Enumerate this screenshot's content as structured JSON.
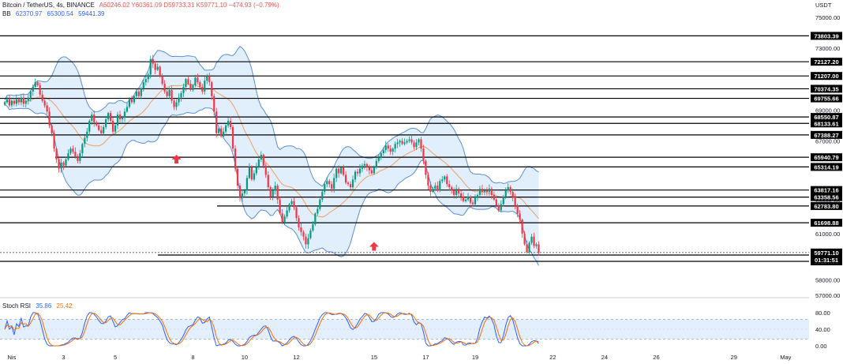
{
  "header": {
    "symbol": "Bitcoin / TetherUS, 4s, BINANCE",
    "ohlc": "A60246.02  Y60361.09  D59733.31  K59771.10  −474.93 (−0.79%)",
    "bb_label": "BB",
    "bb_values": [
      "62370.97",
      "65300.54",
      "59441.39"
    ],
    "currency": "USDT"
  },
  "rsi_panel": {
    "label": "Stoch RSI",
    "k": "35.86",
    "d": "25.42"
  },
  "colors": {
    "up": "#089981",
    "down": "#f23645",
    "band": "#5b8fd6",
    "band_fill": "#d7e8fb",
    "basis": "#f0a068",
    "rsi_k": "#2962ff",
    "rsi_d": "#ff6d00",
    "arrow": "#f23645"
  },
  "chart_data": {
    "type": "candlestick",
    "y_range": [
      57000,
      75000
    ],
    "y_ticks": [
      {
        "label": "75000.00",
        "v": 75000
      },
      {
        "label": "73000.00",
        "v": 73000
      },
      {
        "label": "69000.00",
        "v": 69000
      },
      {
        "label": "67000.00",
        "v": 67000
      },
      {
        "label": "63000.00",
        "v": 63000
      },
      {
        "label": "61000.00",
        "v": 61000
      },
      {
        "label": "58000.00",
        "v": 58000
      },
      {
        "label": "57000.00",
        "v": 57000
      }
    ],
    "x_labels": [
      {
        "label": "Nis",
        "i": 3
      },
      {
        "label": "3",
        "i": 25
      },
      {
        "label": "5",
        "i": 47
      },
      {
        "label": "8",
        "i": 80
      },
      {
        "label": "10",
        "i": 102
      },
      {
        "label": "12",
        "i": 124
      },
      {
        "label": "15",
        "i": 157
      },
      {
        "label": "17",
        "i": 179
      },
      {
        "label": "19",
        "i": 200
      },
      {
        "label": "22",
        "i": 233
      },
      {
        "label": "24",
        "i": 255
      },
      {
        "label": "26",
        "i": 277
      },
      {
        "label": "29",
        "i": 310
      },
      {
        "label": "May",
        "i": 332
      }
    ],
    "levels": [
      {
        "label": "73803.39",
        "v": 73803.39,
        "x0": 0
      },
      {
        "label": "72127.20",
        "v": 72127.2,
        "x0": 0
      },
      {
        "label": "71207.00",
        "v": 71207.0,
        "x0": 0
      },
      {
        "label": "70374.35",
        "v": 70374.35,
        "x0": 0
      },
      {
        "label": "69755.66",
        "v": 69755.66,
        "x0": 0
      },
      {
        "label": "68550.87",
        "v": 68550.87,
        "x0": 0
      },
      {
        "label": "68133.61",
        "v": 68133.61,
        "x0": 0
      },
      {
        "label": "67388.27",
        "v": 67388.27,
        "x0": 0
      },
      {
        "label": "65940.79",
        "v": 65940.79,
        "x0": 70
      },
      {
        "label": "65314.19",
        "v": 65314.19,
        "x0": 0
      },
      {
        "label": "63817.16",
        "v": 63817.16,
        "x0": 0
      },
      {
        "label": "63358.56",
        "v": 63358.56,
        "x0": 0
      },
      {
        "label": "62783.80",
        "v": 62783.8,
        "x0": 275
      },
      {
        "label": "61698.88",
        "v": 61698.88,
        "x0": 0
      },
      {
        "label": "59607.03",
        "v": 59607.03,
        "x0": 200
      },
      {
        "label": "59197.99",
        "v": 59197.99,
        "x0": 0
      }
    ],
    "current_price": {
      "label": "59771.10",
      "countdown": "01:31:51",
      "v": 59771.1
    },
    "arrows": [
      {
        "i": 73,
        "v": 66100
      },
      {
        "i": 157,
        "v": 60450
      }
    ],
    "candles_close": [
      69500,
      69700,
      69300,
      69600,
      69400,
      69700,
      69500,
      69800,
      69400,
      69600,
      69800,
      70200,
      70500,
      70800,
      70600,
      70000,
      69600,
      69300,
      68900,
      68000,
      67500,
      66500,
      65800,
      65200,
      65600,
      65400,
      65800,
      66200,
      66500,
      66300,
      66000,
      65700,
      66200,
      66800,
      67200,
      67600,
      68300,
      68700,
      68200,
      68000,
      67700,
      67500,
      67900,
      68400,
      68800,
      68300,
      67600,
      68000,
      68700,
      68400,
      68500,
      68900,
      69200,
      69700,
      69500,
      69900,
      70200,
      69900,
      70400,
      70800,
      71000,
      71300,
      72300,
      72000,
      71600,
      71800,
      71200,
      70700,
      70200,
      69900,
      70300,
      69600,
      69200,
      69500,
      69800,
      70100,
      70500,
      71000,
      70700,
      70300,
      70600,
      71100,
      70800,
      70500,
      70200,
      70900,
      71200,
      70800,
      69900,
      68900,
      67500,
      67800,
      67300,
      67600,
      68000,
      68300,
      67900,
      66500,
      65200,
      64100,
      63300,
      63600,
      63800,
      64600,
      65300,
      64500,
      64900,
      65300,
      65800,
      66100,
      65400,
      64800,
      64000,
      63400,
      63800,
      64100,
      63200,
      62300,
      61700,
      62100,
      62500,
      62900,
      63100,
      62700,
      62000,
      61400,
      61100,
      60800,
      60300,
      60700,
      61200,
      61600,
      62300,
      62600,
      63200,
      63700,
      64200,
      64400,
      64200,
      63900,
      64600,
      65200,
      64900,
      65300,
      64800,
      64300,
      64200,
      64000,
      64500,
      65000,
      64900,
      65200,
      65400,
      65500,
      65300,
      65100,
      64900,
      65300,
      65700,
      65900,
      66200,
      66400,
      66700,
      66500,
      66300,
      66500,
      66800,
      66900,
      67000,
      66800,
      66900,
      67000,
      67100,
      66900,
      66600,
      66900,
      67100,
      66500,
      65700,
      64800,
      64100,
      63700,
      63900,
      64100,
      63800,
      64400,
      64500,
      64700,
      64200,
      64000,
      63800,
      63500,
      63900,
      63600,
      63400,
      63100,
      63200,
      63400,
      63000,
      62900,
      63300,
      63500,
      63900,
      63700,
      63800,
      63700,
      63900,
      63500,
      63200,
      62800,
      62500,
      62900,
      63400,
      63800,
      64000,
      63700,
      63300,
      62800,
      62300,
      61900,
      61000,
      60300,
      59800,
      60400,
      60800,
      60200,
      60300,
      59771
    ]
  }
}
